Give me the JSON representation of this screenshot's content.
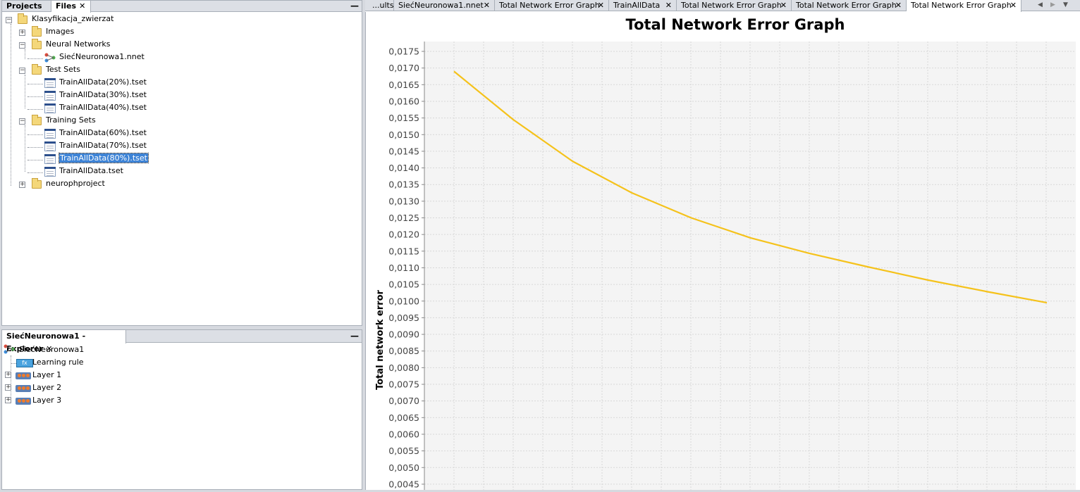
{
  "projects_panel": {
    "tabs": [
      {
        "label": "Projects",
        "active": false
      },
      {
        "label": "Files",
        "active": true,
        "close": "✕"
      }
    ],
    "minimize": "—",
    "tree": {
      "root": "Klasyfikacja_zwierzat",
      "images": "Images",
      "neural_networks": "Neural Networks",
      "network_file": "SiećNeuronowa1.nnet",
      "test_sets": "Test Sets",
      "test_files": [
        "TrainAllData(20%).tset",
        "TrainAllData(30%).tset",
        "TrainAllData(40%).tset"
      ],
      "training_sets": "Training Sets",
      "training_files": [
        "TrainAllData(60%).tset",
        "TrainAllData(70%).tset",
        "TrainAllData(80%).tset",
        "TrainAllData.tset"
      ],
      "selected_file": "TrainAllData(80%).tset",
      "other_project": "neurophproject"
    }
  },
  "explorer_panel": {
    "tab_label": "SiećNeuronowa1 - Explorer",
    "close": "✕",
    "minimize": "—",
    "tree": {
      "root": "SiećNeuronowa1",
      "learning_rule": "Learning rule",
      "layers": [
        "Layer 1",
        "Layer 2",
        "Layer 3"
      ]
    }
  },
  "editor_tabs": [
    {
      "label": "...ults",
      "close": "✕",
      "active": false
    },
    {
      "label": "SiećNeuronowa1.nnet",
      "close": "✕",
      "active": false
    },
    {
      "label": "Total Network Error Graph",
      "close": "✕",
      "active": false
    },
    {
      "label": "TrainAllData",
      "close": "✕",
      "active": false
    },
    {
      "label": "Total Network Error Graph",
      "close": "✕",
      "active": false
    },
    {
      "label": "Total Network Error Graph",
      "close": "✕",
      "active": false
    },
    {
      "label": "Total Network Error Graph",
      "close": "✕",
      "active": true
    }
  ],
  "editor_nav": {
    "left": "◀",
    "right": "▶",
    "menu": "▼"
  },
  "chart_data": {
    "type": "line",
    "title": "Total Network Error Graph",
    "ylabel": "Total network error",
    "xlabel": "",
    "ylim": [
      0.0045,
      0.0175
    ],
    "y_tick_labels": [
      "0,0175",
      "0,0170",
      "0,0165",
      "0,0160",
      "0,0155",
      "0,0150",
      "0,0145",
      "0,0140",
      "0,0135",
      "0,0130",
      "0,0125",
      "0,0120",
      "0,0115",
      "0,0110",
      "0,0105",
      "0,0100",
      "0,0095",
      "0,0090",
      "0,0085",
      "0,0080",
      "0,0075",
      "0,0070",
      "0,0065",
      "0,0060",
      "0,0055",
      "0,0050",
      "0,0045"
    ],
    "y_tick_values": [
      0.0175,
      0.017,
      0.0165,
      0.016,
      0.0155,
      0.015,
      0.0145,
      0.014,
      0.0135,
      0.013,
      0.0125,
      0.012,
      0.0115,
      0.011,
      0.0105,
      0.01,
      0.0095,
      0.009,
      0.0085,
      0.008,
      0.0075,
      0.007,
      0.0065,
      0.006,
      0.0055,
      0.005,
      0.0045
    ],
    "grid": true,
    "line_color": "#f5c21b",
    "plot_background": "#f4f4f4",
    "x": [
      1,
      2,
      3,
      4,
      5,
      6,
      7,
      8,
      9,
      10,
      11
    ],
    "series": [
      {
        "values": [
          0.0169,
          0.01545,
          0.0142,
          0.01325,
          0.0125,
          0.0119,
          0.01143,
          0.01102,
          0.01063,
          0.01028,
          0.00995
        ]
      }
    ]
  }
}
